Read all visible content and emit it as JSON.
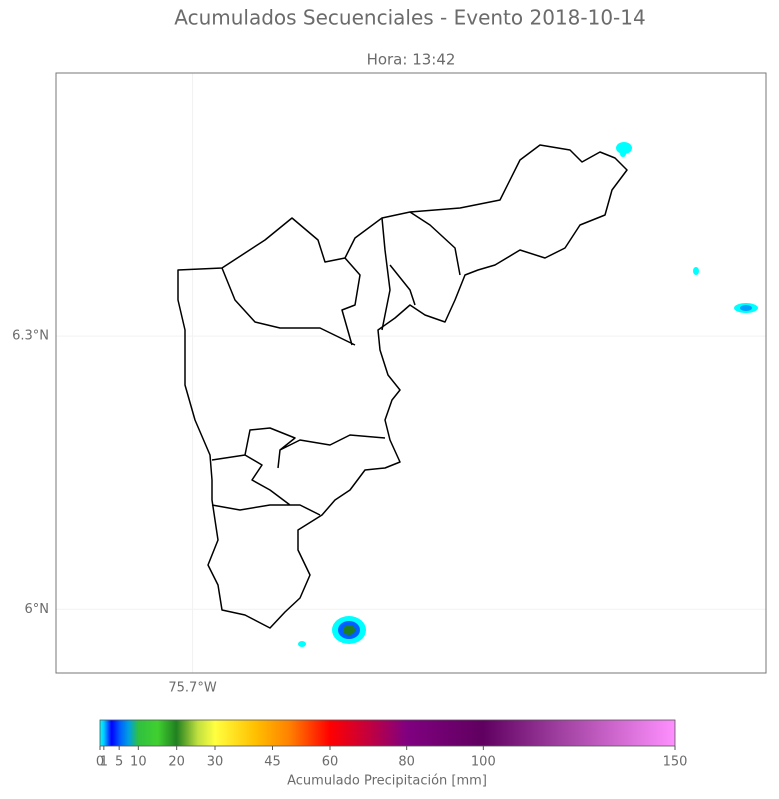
{
  "chart_data": {
    "type": "map",
    "title": "Acumulados Secuenciales - Evento 2018-10-14",
    "subtitle": "Hora: 13:42",
    "xlim": [
      -75.85,
      -75.07
    ],
    "ylim": [
      5.93,
      6.589
    ],
    "xticks": [
      {
        "value": -75.7,
        "label": "75.7°W"
      }
    ],
    "yticks": [
      {
        "value": 6.3,
        "label": "6.3°N"
      },
      {
        "value": 6,
        "label": "6°N"
      }
    ],
    "grid": true,
    "colorbar": {
      "label": "Acumulado Precipitación [mm]",
      "lim": [
        0,
        150
      ],
      "ticks": [
        0,
        1,
        5,
        10,
        20,
        30,
        45,
        60,
        80,
        100,
        150
      ]
    }
  }
}
